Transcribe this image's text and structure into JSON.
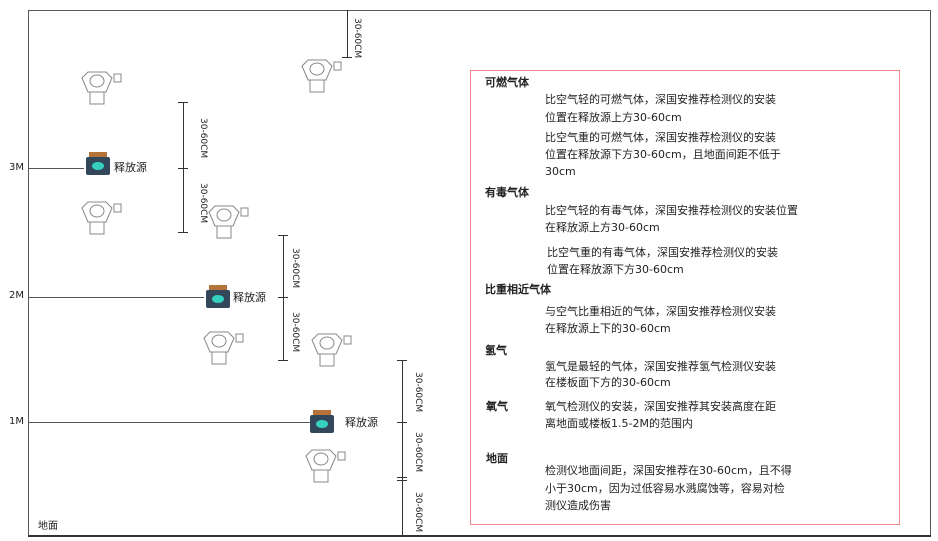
{
  "levels": {
    "m3": "3M",
    "m2": "2M",
    "m1": "1M",
    "ground": "地面"
  },
  "source_label": "释放源",
  "dim_label": "30-60CM",
  "colors": {
    "box_border": "#f08a8a",
    "source_body": "#33475b",
    "source_glow": "#35d0c0",
    "source_cap": "#b5733a"
  },
  "panel": {
    "combustible": {
      "title": "可燃气体",
      "p1": [
        "比空气轻的可燃气体，深国安推荐检测仪的安装",
        "位置在释放源上方30-60cm"
      ],
      "p2": [
        "比空气重的可燃气体，深国安推荐检测仪的安装",
        "位置在释放源下方30-60cm，且地面间距不低于",
        "30cm"
      ]
    },
    "toxic": {
      "title": "有毒气体",
      "p1": [
        "比空气轻的有毒气体，深国安推荐检测仪的安装位置",
        "在释放源上方30-60cm"
      ],
      "p2": [
        "比空气重的有毒气体，深国安推荐检测仪的安装",
        "位置在释放源下方30-60cm"
      ]
    },
    "similar": {
      "title": "比重相近气体",
      "p1": [
        "与空气比重相近的气体，深国安推荐检测仪安装",
        "在释放源上下的30-60cm"
      ]
    },
    "hydrogen": {
      "title": "氢气",
      "p1": [
        "氢气是最轻的气体，深国安推荐氢气检测仪安装",
        "在楼板面下方的30-60cm"
      ]
    },
    "oxygen": {
      "title": "氧气",
      "p1": [
        "氧气检测仪的安装，深国安推荐其安装高度在距",
        "离地面或楼板1.5-2M的范围内"
      ]
    },
    "ground": {
      "title": "地面",
      "p1": [
        "检测仪地面间距，深国安推荐在30-60cm，且不得",
        "小于30cm，因为过低容易水溅腐蚀等，容易对检",
        "测仪造成伤害"
      ]
    }
  }
}
